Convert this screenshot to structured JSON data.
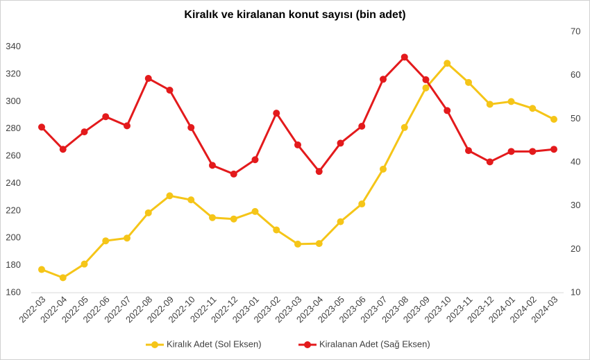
{
  "chart_data": {
    "type": "line",
    "title": "Kiralık ve kiralanan konut sayısı (bin adet)",
    "categories": [
      "2022-03",
      "2022-04",
      "2022-05",
      "2022-06",
      "2022-07",
      "2022-08",
      "2022-09",
      "2022-10",
      "2022-11",
      "2022-12",
      "2023-01",
      "2023-02",
      "2023-03",
      "2023-04",
      "2023-05",
      "2023-06",
      "2023-07",
      "2023-08",
      "2023-09",
      "2023-10",
      "2023-11",
      "2023-12",
      "2024-01",
      "2024-02",
      "2024-03"
    ],
    "series": [
      {
        "name": "Kiralık Adet (Sol Eksen)",
        "color": "#f5c518",
        "axis": "y",
        "values": [
          177,
          171,
          181,
          198,
          200,
          218.5,
          231,
          228,
          215,
          214,
          219.5,
          206,
          195.6,
          196,
          212,
          225,
          250.5,
          281,
          310,
          328,
          314,
          298,
          300,
          295,
          287
        ]
      },
      {
        "name": "Kiralanan Adet (Sağ Eksen)",
        "color": "#e31a1c",
        "axis": "y2",
        "values": [
          48.1,
          43,
          47,
          50.5,
          48.4,
          59.3,
          56.6,
          48,
          39.3,
          37.3,
          40.6,
          51.3,
          44,
          37.9,
          44.4,
          48.3,
          59.1,
          64.2,
          59,
          51.9,
          42.7,
          40.1,
          42.5,
          42.5,
          43
        ]
      }
    ],
    "ylim": [
      160,
      351
    ],
    "yticks": [
      160,
      180,
      200,
      220,
      240,
      260,
      280,
      300,
      320,
      340
    ],
    "y2lim": [
      10,
      70
    ],
    "y2ticks": [
      10,
      20,
      30,
      40,
      50,
      60,
      70
    ],
    "legend": "bottom"
  }
}
